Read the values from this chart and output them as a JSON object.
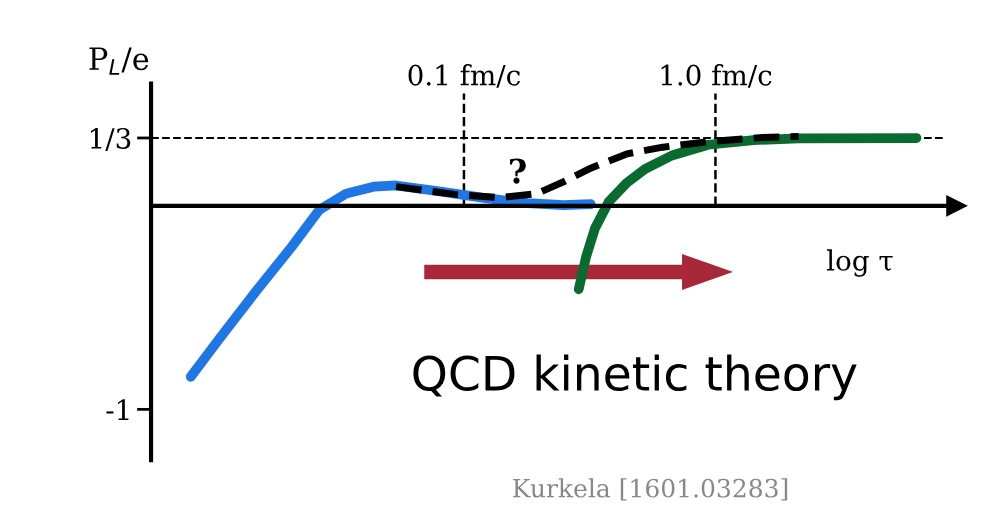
{
  "chart_data": {
    "type": "line",
    "xlabel": "log τ",
    "ylabel": "P$_{L}$/e",
    "log": "x",
    "xlim": [
      0.0057,
      9.1
    ],
    "ylim": [
      -1.25,
      0.6
    ],
    "yticks": [
      {
        "value": 0.3333,
        "label": "1/3"
      },
      {
        "value": -1,
        "label": "-1"
      }
    ],
    "tick_labels": "y",
    "grid": false,
    "legend": false,
    "series": [
      {
        "color": "#1f77e6",
        "line_style": "solid",
        "x": [
          0.0082,
          0.0107,
          0.0149,
          0.0207,
          0.0266,
          0.034,
          0.0437,
          0.0537,
          0.078,
          0.118,
          0.179,
          0.249,
          0.319
        ],
        "values": [
          -0.84,
          -0.65,
          -0.42,
          -0.2,
          -0.02,
          0.06,
          0.094,
          0.1,
          0.073,
          0.04,
          0.013,
          0.003,
          0.008
        ]
      },
      {
        "color": "#0a6b30",
        "line_style": "solid",
        "x": [
          0.286,
          0.306,
          0.332,
          0.376,
          0.444,
          0.524,
          0.671,
          0.935,
          1.42,
          2.14,
          6.3
        ],
        "values": [
          -0.41,
          -0.25,
          -0.11,
          0.019,
          0.113,
          0.18,
          0.247,
          0.3,
          0.323,
          0.331,
          0.333
        ]
      },
      {
        "color": "#000000",
        "line_style": "dashed",
        "x": [
          0.0537,
          0.092,
          0.139,
          0.194,
          0.249,
          0.319,
          0.444,
          0.618,
          0.935,
          1.54,
          2.14
        ],
        "values": [
          0.094,
          0.056,
          0.04,
          0.059,
          0.118,
          0.185,
          0.255,
          0.288,
          0.315,
          0.336,
          0.341
        ]
      }
    ],
    "ref_lines": [
      {
        "axis": "x",
        "value": 0.1,
        "label": "0.1 fm/c",
        "color": "#000000",
        "line_style": "dashed"
      },
      {
        "axis": "x",
        "value": 1.0,
        "label": "1.0 fm/c",
        "color": "#000000",
        "line_style": "dashed"
      },
      {
        "axis": "y",
        "value": 0.3333,
        "label": null,
        "color": "#000000",
        "line_style": "dashed"
      }
    ],
    "annotations": [
      "?",
      "QCD kinetic theory",
      "Kurkela [1601.03283]"
    ]
  }
}
